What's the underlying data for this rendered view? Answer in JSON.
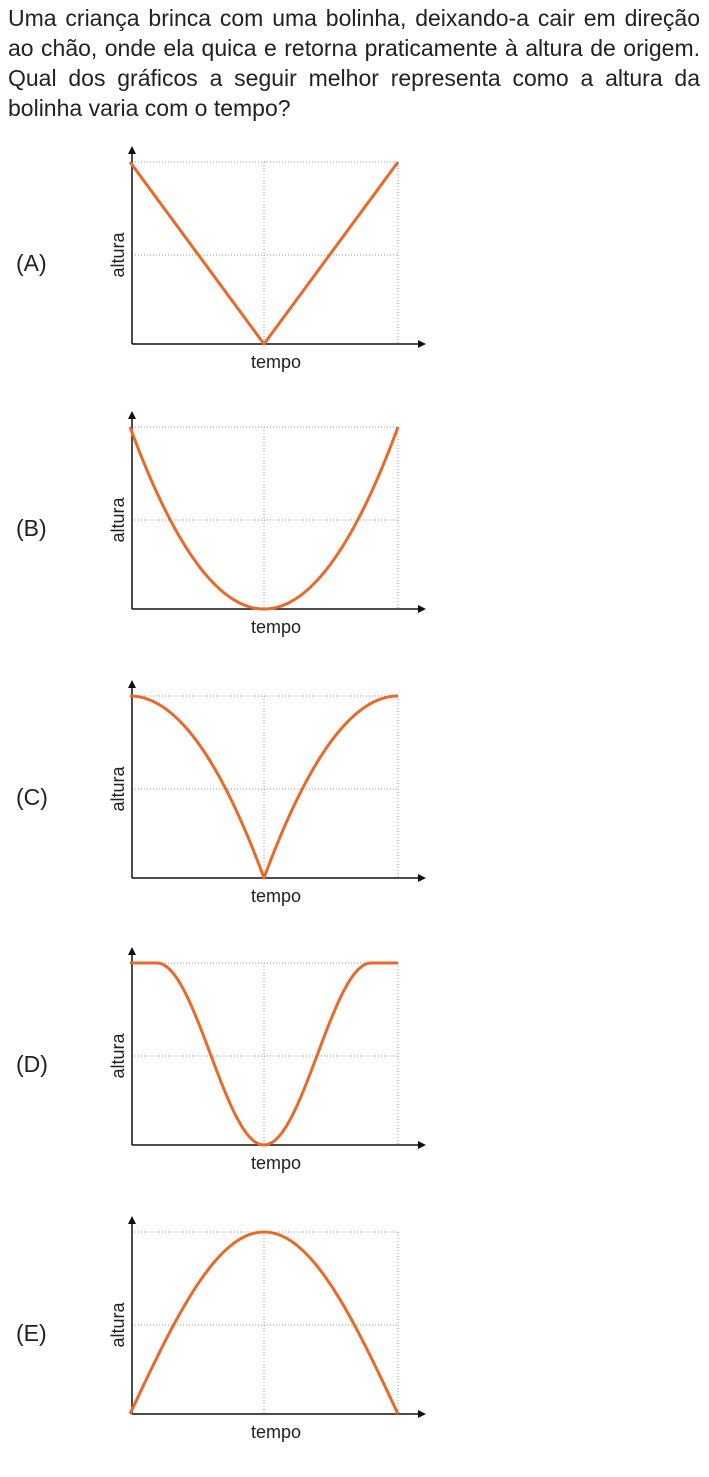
{
  "question": "Uma criança brinca com uma bolinha, deixando-a cair em direção ao chão, onde ela quica e retorna praticamente à altura de origem. Qual dos gráficos a seguir melhor representa como a altura da bolinha varia com o tempo?",
  "options": [
    {
      "label": "(A)",
      "y_label": "altura",
      "x_label": "tempo"
    },
    {
      "label": "(B)",
      "y_label": "altura",
      "x_label": "tempo"
    },
    {
      "label": "(C)",
      "y_label": "altura",
      "x_label": "tempo"
    },
    {
      "label": "(D)",
      "y_label": "altura",
      "x_label": "tempo"
    },
    {
      "label": "(E)",
      "y_label": "altura",
      "x_label": "tempo"
    }
  ]
}
